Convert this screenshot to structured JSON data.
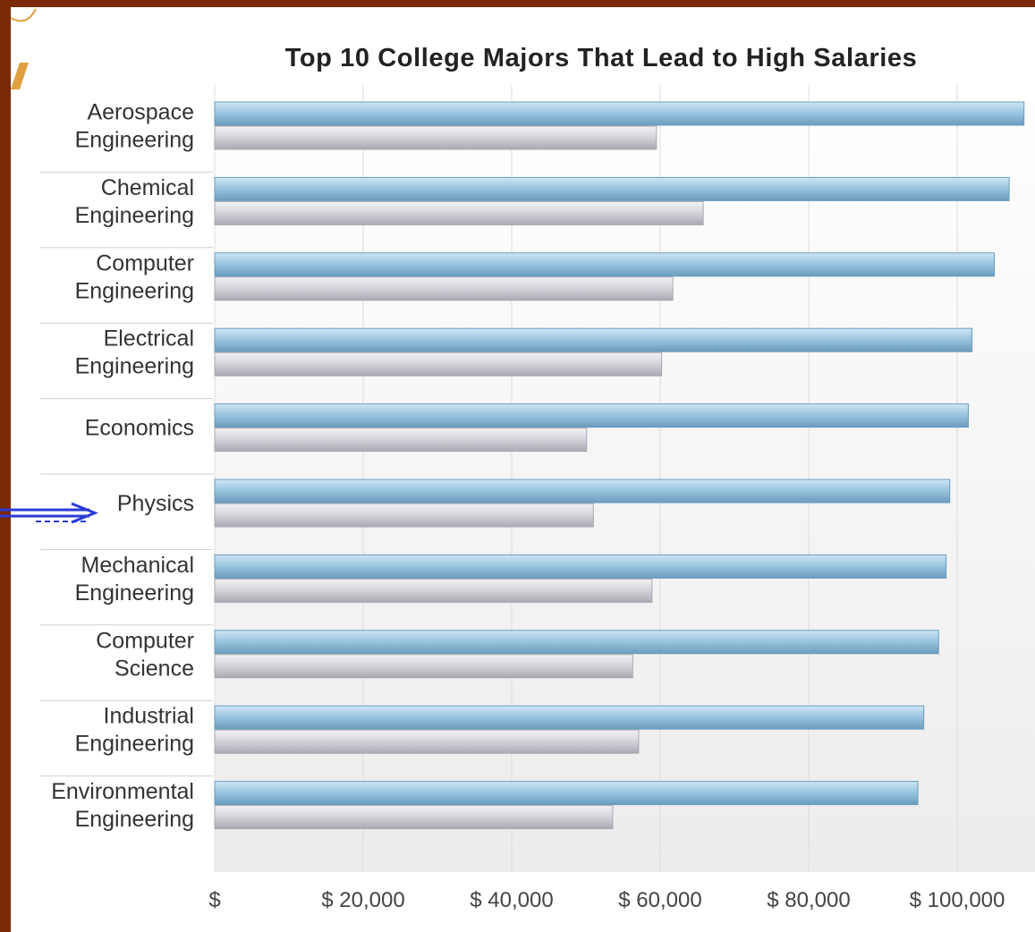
{
  "colors": {
    "frame": "#7a2a06",
    "accent_stroke": "#e0a040",
    "arrow": "#2b3bd6",
    "bar_blue_top": "#cfe6f4",
    "bar_blue_mid": "#9cc6e0",
    "bar_blue_bottom": "#6b9cbd",
    "bar_gray_top": "#f2f2f5",
    "bar_gray_mid": "#d6d6dc",
    "bar_gray_bottom": "#a9a9b2",
    "plot_bg_top": "#ffffff",
    "plot_bg_bottom": "#ececec",
    "grid": "#dddddd",
    "separator": "#cfcfcf"
  },
  "decorations": {
    "arrow_icon": "double-arrow-right-icon",
    "arrow_target": "Physics"
  },
  "chart_data": {
    "type": "bar",
    "orientation": "horizontal",
    "title": "Top 10 College Majors That Lead to High Salaries",
    "xlabel": "",
    "ylabel": "",
    "categories": [
      [
        "Aerospace",
        "Engineering"
      ],
      [
        "Chemical",
        "Engineering"
      ],
      [
        "Computer",
        "Engineering"
      ],
      [
        "Electrical",
        "Engineering"
      ],
      [
        "Economics"
      ],
      [
        "Physics"
      ],
      [
        "Mechanical",
        "Engineering"
      ],
      [
        "Computer",
        "Science"
      ],
      [
        "Industrial",
        "Engineering"
      ],
      [
        "Environmental",
        "Engineering"
      ]
    ],
    "series": [
      {
        "values": [
          109000,
          107000,
          105000,
          102000,
          101500,
          99000,
          98500,
          97500,
          95500,
          94700
        ]
      },
      {
        "values": [
          59500,
          65800,
          61700,
          60200,
          50100,
          51000,
          58900,
          56300,
          57100,
          53600
        ]
      }
    ],
    "xlim": [
      0,
      110000
    ],
    "xticks": [
      0,
      20000,
      40000,
      60000,
      80000,
      100000
    ],
    "xtick_labels": [
      "$",
      "$ 20,000",
      "$ 40,000",
      "$ 60,000",
      "$ 80,000",
      "$ 100,000"
    ],
    "grid": true,
    "legend": "none"
  }
}
